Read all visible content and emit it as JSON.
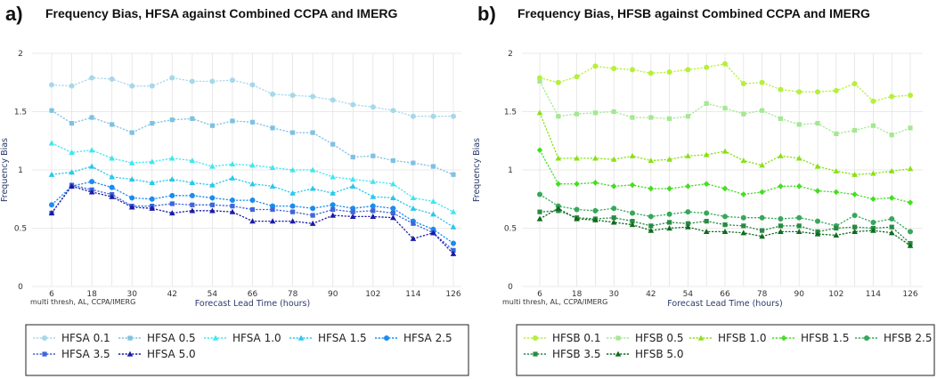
{
  "chart_data": [
    {
      "type": "line",
      "panel_label": "a)",
      "title": "Frequency Bias, HFSA against Combined CCPA and IMERG",
      "xlabel": "Forecast Lead Time (hours)",
      "ylabel": "Frequency Bias",
      "note": "multi thresh, AL, CCPA/IMERG",
      "ylim": [
        0,
        2
      ],
      "yticks": [
        "0",
        "0.5",
        "1",
        "1.5",
        "2"
      ],
      "xticks": [
        "6",
        "18",
        "30",
        "42",
        "54",
        "66",
        "78",
        "90",
        "102",
        "114",
        "126"
      ],
      "x": [
        6,
        12,
        18,
        24,
        30,
        36,
        42,
        48,
        54,
        60,
        66,
        72,
        78,
        84,
        90,
        96,
        102,
        108,
        114,
        120,
        126
      ],
      "series": [
        {
          "name": "HFSA 0.1",
          "color": "#a6d8ea",
          "marker": "circle",
          "values": [
            1.73,
            1.72,
            1.79,
            1.78,
            1.72,
            1.72,
            1.79,
            1.76,
            1.76,
            1.77,
            1.73,
            1.65,
            1.64,
            1.63,
            1.6,
            1.56,
            1.54,
            1.51,
            1.46,
            1.46,
            1.46
          ]
        },
        {
          "name": "HFSA 0.5",
          "color": "#7fc1e3",
          "marker": "square",
          "values": [
            1.51,
            1.4,
            1.45,
            1.39,
            1.32,
            1.4,
            1.43,
            1.44,
            1.38,
            1.42,
            1.41,
            1.36,
            1.32,
            1.32,
            1.22,
            1.11,
            1.12,
            1.08,
            1.06,
            1.03,
            0.96
          ]
        },
        {
          "name": "HFSA 1.0",
          "color": "#3fe6f0",
          "marker": "triangle",
          "values": [
            1.23,
            1.15,
            1.17,
            1.1,
            1.06,
            1.07,
            1.1,
            1.08,
            1.03,
            1.05,
            1.04,
            1.02,
            1.0,
            1.0,
            0.94,
            0.92,
            0.9,
            0.88,
            0.76,
            0.73,
            0.64
          ]
        },
        {
          "name": "HFSA 1.5",
          "color": "#28c8ec",
          "marker": "triangle",
          "values": [
            0.96,
            0.98,
            1.03,
            0.94,
            0.92,
            0.89,
            0.92,
            0.89,
            0.87,
            0.93,
            0.88,
            0.86,
            0.8,
            0.84,
            0.8,
            0.86,
            0.77,
            0.76,
            0.67,
            0.62,
            0.51
          ]
        },
        {
          "name": "HFSA 2.5",
          "color": "#1a8cf0",
          "marker": "circle",
          "values": [
            0.7,
            0.86,
            0.9,
            0.85,
            0.76,
            0.75,
            0.78,
            0.78,
            0.76,
            0.74,
            0.74,
            0.69,
            0.69,
            0.67,
            0.7,
            0.67,
            0.69,
            0.67,
            0.56,
            0.49,
            0.37
          ]
        },
        {
          "name": "HFSA 3.5",
          "color": "#3d66d9",
          "marker": "square",
          "values": [
            0.63,
            0.87,
            0.83,
            0.79,
            0.69,
            0.69,
            0.71,
            0.7,
            0.7,
            0.69,
            0.66,
            0.66,
            0.64,
            0.61,
            0.66,
            0.64,
            0.65,
            0.63,
            0.54,
            0.46,
            0.31
          ]
        },
        {
          "name": "HFSA 5.0",
          "color": "#1a1aa8",
          "marker": "triangle",
          "values": [
            0.63,
            0.86,
            0.81,
            0.77,
            0.68,
            0.67,
            0.63,
            0.65,
            0.65,
            0.64,
            0.56,
            0.56,
            0.56,
            0.54,
            0.61,
            0.6,
            0.6,
            0.59,
            0.41,
            0.46,
            0.28
          ]
        }
      ]
    },
    {
      "type": "line",
      "panel_label": "b)",
      "title": "Frequency Bias, HFSB against Combined CCPA and IMERG",
      "xlabel": "Forecast Lead Time (hours)",
      "ylabel": "Frequency Bias",
      "note": "multi thresh, AL, CCPA/IMERG",
      "ylim": [
        0,
        2
      ],
      "yticks": [
        "0",
        "0.5",
        "1",
        "1.5",
        "2"
      ],
      "xticks": [
        "6",
        "18",
        "30",
        "42",
        "54",
        "66",
        "78",
        "90",
        "102",
        "114",
        "126"
      ],
      "x": [
        6,
        12,
        18,
        24,
        30,
        36,
        42,
        48,
        54,
        60,
        66,
        72,
        78,
        84,
        90,
        96,
        102,
        108,
        114,
        120,
        126
      ],
      "series": [
        {
          "name": "HFSB 0.1",
          "color": "#b5f03a",
          "marker": "circle",
          "values": [
            1.79,
            1.75,
            1.8,
            1.89,
            1.87,
            1.86,
            1.83,
            1.84,
            1.86,
            1.88,
            1.91,
            1.74,
            1.75,
            1.69,
            1.67,
            1.67,
            1.68,
            1.74,
            1.59,
            1.63,
            1.64
          ]
        },
        {
          "name": "HFSB 0.5",
          "color": "#a4e892",
          "marker": "square",
          "values": [
            1.76,
            1.46,
            1.48,
            1.49,
            1.5,
            1.45,
            1.45,
            1.44,
            1.46,
            1.57,
            1.53,
            1.48,
            1.51,
            1.44,
            1.39,
            1.4,
            1.31,
            1.34,
            1.38,
            1.3,
            1.36
          ]
        },
        {
          "name": "HFSB 1.0",
          "color": "#8ae017",
          "marker": "triangle",
          "values": [
            1.49,
            1.1,
            1.1,
            1.1,
            1.09,
            1.12,
            1.08,
            1.09,
            1.12,
            1.13,
            1.16,
            1.08,
            1.04,
            1.12,
            1.1,
            1.03,
            0.99,
            0.96,
            0.97,
            0.99,
            1.01
          ]
        },
        {
          "name": "HFSB 1.5",
          "color": "#44dd22",
          "marker": "diamond",
          "values": [
            1.17,
            0.88,
            0.88,
            0.89,
            0.86,
            0.87,
            0.84,
            0.84,
            0.86,
            0.88,
            0.84,
            0.79,
            0.81,
            0.86,
            0.86,
            0.82,
            0.81,
            0.79,
            0.75,
            0.76,
            0.72
          ]
        },
        {
          "name": "HFSB 2.5",
          "color": "#36a85a",
          "marker": "circle",
          "values": [
            0.79,
            0.69,
            0.66,
            0.65,
            0.67,
            0.63,
            0.6,
            0.62,
            0.64,
            0.63,
            0.6,
            0.59,
            0.59,
            0.58,
            0.59,
            0.56,
            0.52,
            0.61,
            0.55,
            0.58,
            0.47
          ]
        },
        {
          "name": "HFSB 3.5",
          "color": "#2a8a44",
          "marker": "square",
          "values": [
            0.64,
            0.65,
            0.59,
            0.58,
            0.59,
            0.56,
            0.52,
            0.55,
            0.54,
            0.56,
            0.53,
            0.52,
            0.48,
            0.52,
            0.52,
            0.47,
            0.5,
            0.51,
            0.5,
            0.51,
            0.37
          ]
        },
        {
          "name": "HFSB 5.0",
          "color": "#0e6b1e",
          "marker": "triangle",
          "values": [
            0.58,
            0.67,
            0.58,
            0.57,
            0.55,
            0.53,
            0.48,
            0.5,
            0.51,
            0.47,
            0.47,
            0.46,
            0.43,
            0.47,
            0.47,
            0.45,
            0.44,
            0.47,
            0.48,
            0.46,
            0.35
          ]
        }
      ]
    }
  ]
}
